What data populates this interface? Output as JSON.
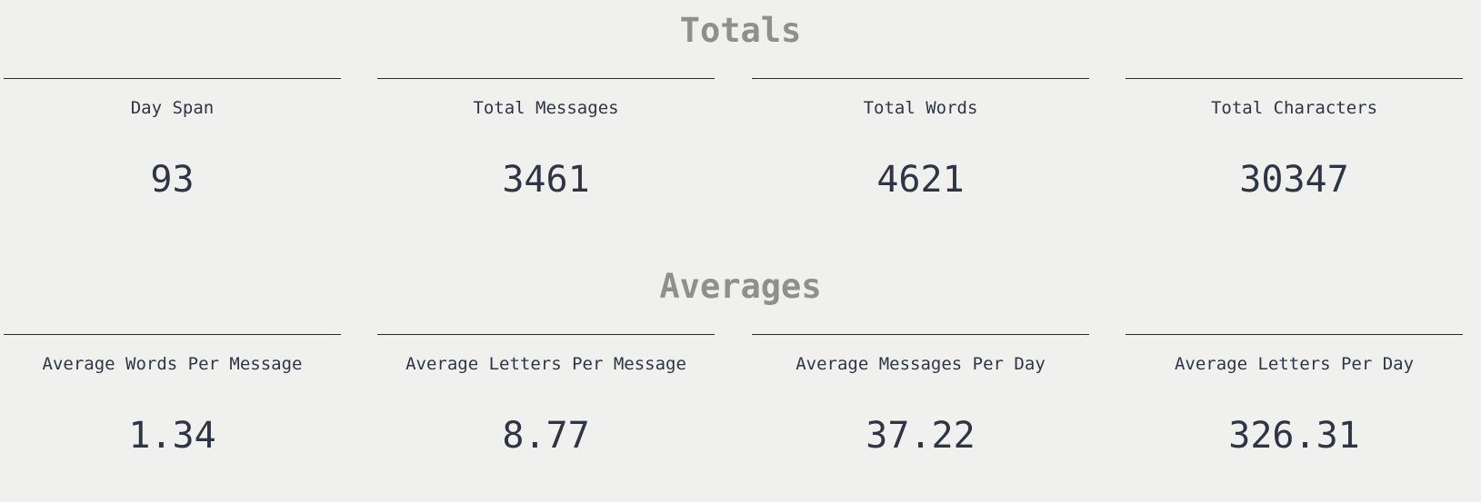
{
  "totals": {
    "title": "Totals",
    "stats": [
      {
        "label": "Day Span",
        "value": "93"
      },
      {
        "label": "Total Messages",
        "value": "3461"
      },
      {
        "label": "Total Words",
        "value": "4621"
      },
      {
        "label": "Total Characters",
        "value": "30347"
      }
    ]
  },
  "averages": {
    "title": "Averages",
    "stats": [
      {
        "label": "Average Words Per Message",
        "value": "1.34"
      },
      {
        "label": "Average Letters Per Message",
        "value": "8.77"
      },
      {
        "label": "Average Messages Per Day",
        "value": "37.22"
      },
      {
        "label": "Average Letters Per Day",
        "value": "326.31"
      }
    ]
  }
}
